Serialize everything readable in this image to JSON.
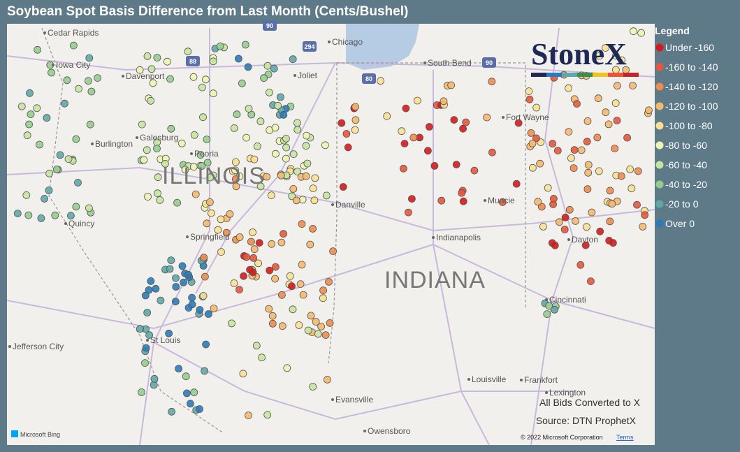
{
  "header": {
    "title": "Soybean Spot Basis Difference from Last Month (Cents/Bushel)"
  },
  "legend": {
    "title": "Legend",
    "items": [
      {
        "label": "Under -160",
        "color": "#d7191c"
      },
      {
        "label": "-160 to -140",
        "color": "#e8553a"
      },
      {
        "label": "-140 to -120",
        "color": "#f08c4d"
      },
      {
        "label": "-120 to -100",
        "color": "#f6b86b"
      },
      {
        "label": "-100 to -80",
        "color": "#fbe08f"
      },
      {
        "label": "-80 to -60",
        "color": "#eef5b0"
      },
      {
        "label": "-60 to -40",
        "color": "#c6e4a0"
      },
      {
        "label": "-40 to -20",
        "color": "#95cd8e"
      },
      {
        "label": "-20 to 0",
        "color": "#5fa8a8"
      },
      {
        "label": "Over 0",
        "color": "#2b7bba"
      }
    ]
  },
  "logo": "StoneX",
  "map": {
    "states": [
      "ILLINOIS",
      "INDIANA"
    ],
    "cities": [
      "Cedar Rapids",
      "Iowa City",
      "Davenport",
      "Galesburg",
      "Burlington",
      "Peoria",
      "Quincy",
      "Springfield",
      "Jefferson City",
      "St Louis",
      "Chicago",
      "Joliet",
      "Danville",
      "South Bend",
      "Fort Wayne",
      "Muncie",
      "Indianapolis",
      "Dayton",
      "Cincinnati",
      "Louisville",
      "Frankfort",
      "Lexington",
      "Evansville",
      "Owensboro"
    ],
    "highways": [
      "90",
      "294",
      "88",
      "80",
      "90"
    ]
  },
  "notes": [
    "All Bids Converted to X",
    "Source: DTN ProphetX"
  ],
  "attribution": {
    "provider": "Microsoft Bing",
    "copyright": "© 2022 Microsoft Corporation",
    "terms": "Terms"
  }
}
